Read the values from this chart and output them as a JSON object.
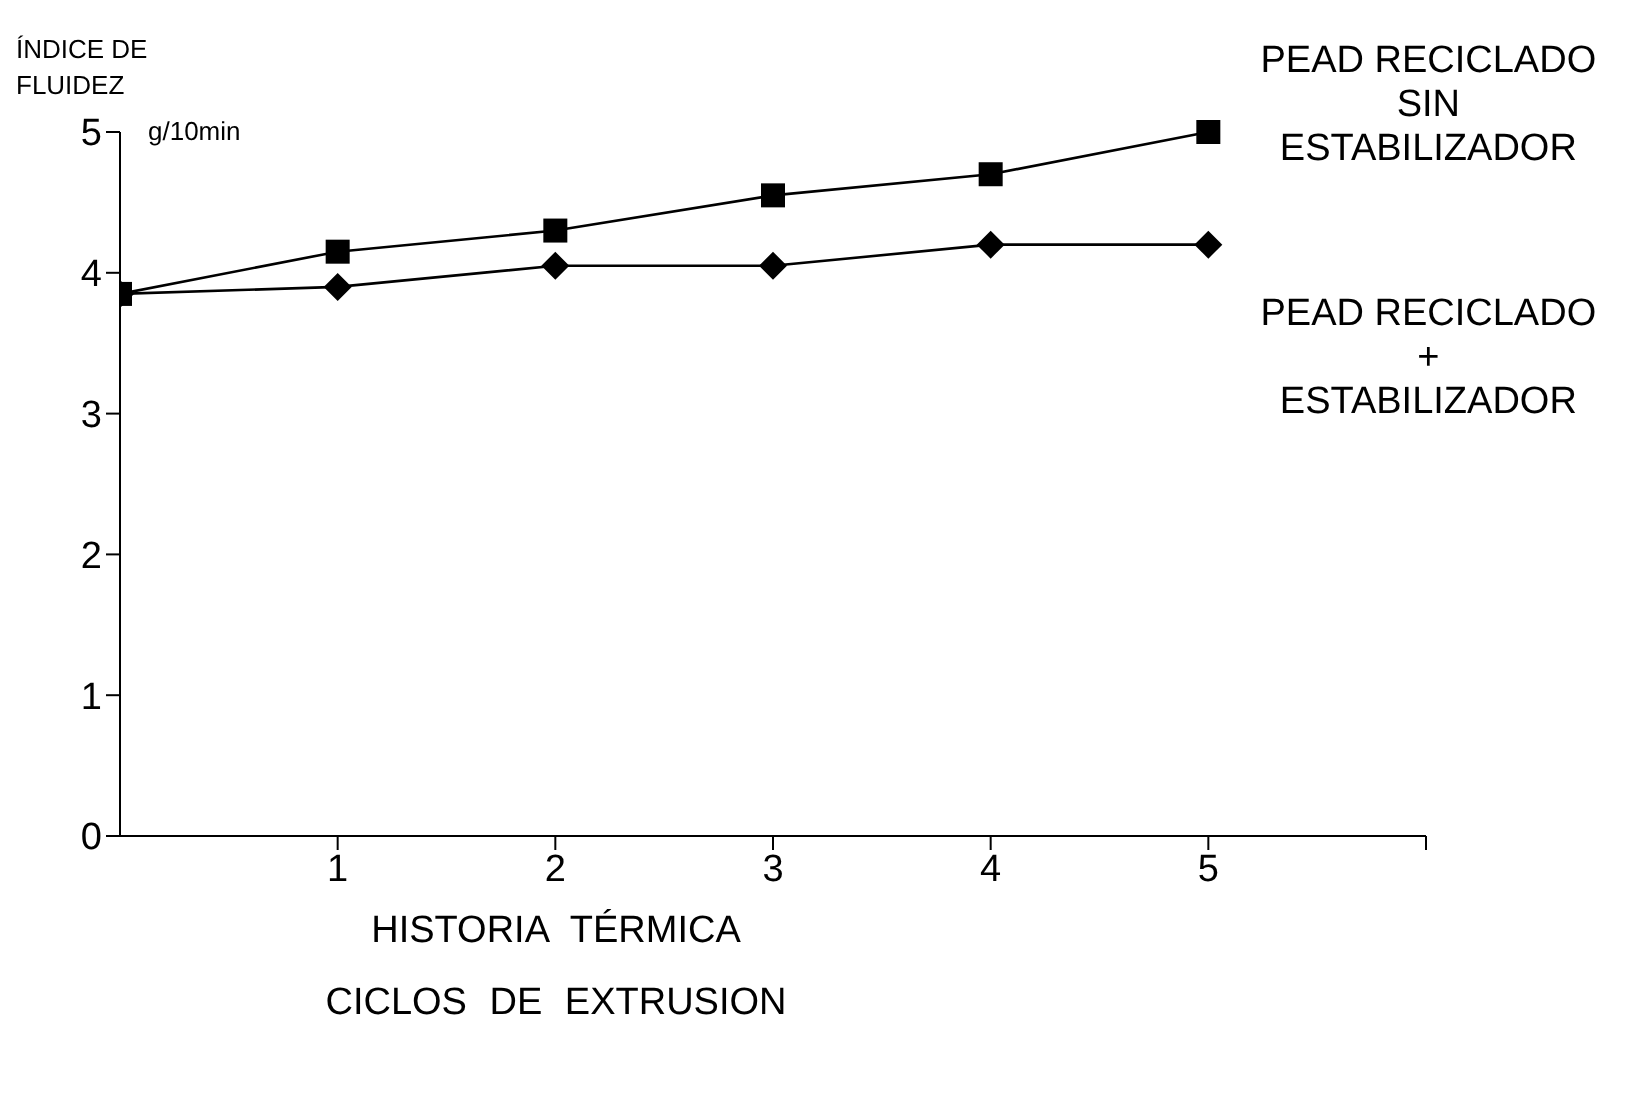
{
  "chart_data": {
    "type": "line",
    "xlabel": "HISTORIA TÉRMICA\nCICLOS DE EXTRUSION",
    "ylabel": "ÍNDICE DE\nFLUIDEZ",
    "annotations": [
      "g/10min"
    ],
    "x": [
      0,
      1,
      2,
      3,
      4,
      5
    ],
    "series": [
      {
        "name": "PEAD RECICLADO\nSIN\nESTABILIZADOR",
        "color": "#000000",
        "marker": "square",
        "values": [
          3.85,
          4.15,
          4.3,
          4.55,
          4.7,
          5.0
        ]
      },
      {
        "name": "PEAD RECICLADO\n+\nESTABILIZADOR",
        "color": "#000000",
        "marker": "diamond",
        "values": [
          3.85,
          3.9,
          4.05,
          4.05,
          4.2,
          4.2
        ]
      }
    ],
    "xlim": [
      0,
      6
    ],
    "xticks": [
      1,
      2,
      3,
      4,
      5,
      {
        "value": 6,
        "label": null
      }
    ],
    "ylim": [
      0,
      5
    ],
    "yticks": [
      0,
      1,
      2,
      3,
      4,
      5
    ],
    "line_style": "solid"
  }
}
